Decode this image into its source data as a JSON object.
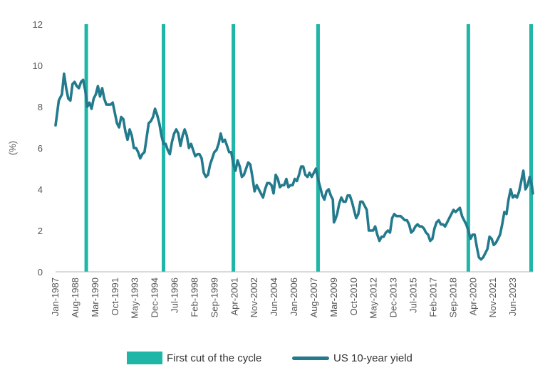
{
  "chart_data": {
    "type": "line",
    "title": "",
    "ylabel": "(%)",
    "xlabel": "",
    "ylim": [
      0,
      12
    ],
    "yticks": [
      0,
      2,
      4,
      6,
      8,
      10,
      12
    ],
    "x_tick_labels": [
      "Jan-1987",
      "Aug-1988",
      "Mar-1990",
      "Oct-1991",
      "May-1993",
      "Dec-1994",
      "Jul-1996",
      "Feb-1998",
      "Sep-1999",
      "Apr-2001",
      "Nov-2002",
      "Jun-2004",
      "Jan-2006",
      "Aug-2007",
      "Mar-2009",
      "Oct-2010",
      "May-2012",
      "Dec-2013",
      "Jul-2015",
      "Feb-2017",
      "Sep-2018",
      "Apr-2020",
      "Nov-2021",
      "Jun-2023"
    ],
    "x_range": [
      "1987-01",
      "2024-08"
    ],
    "grid": false,
    "legend_position": "bottom",
    "series": [
      {
        "name": "US 10-year yield",
        "color": "#237a8c",
        "points": [
          [
            "1987-01",
            7.1
          ],
          [
            "1987-04",
            8.3
          ],
          [
            "1987-07",
            8.6
          ],
          [
            "1987-09",
            9.6
          ],
          [
            "1987-11",
            8.9
          ],
          [
            "1988-01",
            8.4
          ],
          [
            "1988-03",
            8.3
          ],
          [
            "1988-05",
            9.1
          ],
          [
            "1988-07",
            9.2
          ],
          [
            "1988-09",
            9.0
          ],
          [
            "1988-11",
            8.9
          ],
          [
            "1989-01",
            9.2
          ],
          [
            "1989-03",
            9.3
          ],
          [
            "1989-05",
            8.8
          ],
          [
            "1989-07",
            8.0
          ],
          [
            "1989-09",
            8.2
          ],
          [
            "1989-11",
            7.9
          ],
          [
            "1990-01",
            8.4
          ],
          [
            "1990-03",
            8.6
          ],
          [
            "1990-05",
            9.0
          ],
          [
            "1990-07",
            8.5
          ],
          [
            "1990-09",
            8.9
          ],
          [
            "1990-11",
            8.4
          ],
          [
            "1991-01",
            8.1
          ],
          [
            "1991-03",
            8.1
          ],
          [
            "1991-05",
            8.1
          ],
          [
            "1991-07",
            8.2
          ],
          [
            "1991-09",
            7.7
          ],
          [
            "1991-11",
            7.2
          ],
          [
            "1992-01",
            7.0
          ],
          [
            "1992-03",
            7.5
          ],
          [
            "1992-05",
            7.4
          ],
          [
            "1992-07",
            6.8
          ],
          [
            "1992-09",
            6.4
          ],
          [
            "1992-11",
            6.9
          ],
          [
            "1993-01",
            6.6
          ],
          [
            "1993-03",
            6.0
          ],
          [
            "1993-05",
            6.0
          ],
          [
            "1993-07",
            5.8
          ],
          [
            "1993-09",
            5.5
          ],
          [
            "1993-11",
            5.7
          ],
          [
            "1994-01",
            5.8
          ],
          [
            "1994-03",
            6.5
          ],
          [
            "1994-05",
            7.2
          ],
          [
            "1994-07",
            7.3
          ],
          [
            "1994-09",
            7.5
          ],
          [
            "1994-11",
            7.9
          ],
          [
            "1995-01",
            7.6
          ],
          [
            "1995-03",
            7.2
          ],
          [
            "1995-05",
            6.6
          ],
          [
            "1995-07",
            6.2
          ],
          [
            "1995-09",
            6.2
          ],
          [
            "1995-11",
            5.9
          ],
          [
            "1996-01",
            5.7
          ],
          [
            "1996-03",
            6.3
          ],
          [
            "1996-05",
            6.7
          ],
          [
            "1996-07",
            6.9
          ],
          [
            "1996-09",
            6.7
          ],
          [
            "1996-11",
            6.1
          ],
          [
            "1997-01",
            6.6
          ],
          [
            "1997-03",
            6.9
          ],
          [
            "1997-05",
            6.6
          ],
          [
            "1997-07",
            6.0
          ],
          [
            "1997-09",
            6.2
          ],
          [
            "1997-11",
            5.9
          ],
          [
            "1998-01",
            5.6
          ],
          [
            "1998-03",
            5.7
          ],
          [
            "1998-05",
            5.7
          ],
          [
            "1998-07",
            5.5
          ],
          [
            "1998-09",
            4.8
          ],
          [
            "1998-11",
            4.6
          ],
          [
            "1999-01",
            4.7
          ],
          [
            "1999-03",
            5.2
          ],
          [
            "1999-05",
            5.5
          ],
          [
            "1999-07",
            5.8
          ],
          [
            "1999-09",
            5.9
          ],
          [
            "1999-11",
            6.2
          ],
          [
            "2000-01",
            6.7
          ],
          [
            "2000-03",
            6.3
          ],
          [
            "2000-05",
            6.4
          ],
          [
            "2000-07",
            6.1
          ],
          [
            "2000-09",
            5.8
          ],
          [
            "2000-11",
            5.8
          ],
          [
            "2001-01",
            5.2
          ],
          [
            "2001-03",
            4.9
          ],
          [
            "2001-05",
            5.4
          ],
          [
            "2001-07",
            5.1
          ],
          [
            "2001-09",
            4.6
          ],
          [
            "2001-11",
            4.7
          ],
          [
            "2002-01",
            5.0
          ],
          [
            "2002-03",
            5.3
          ],
          [
            "2002-05",
            5.2
          ],
          [
            "2002-07",
            4.6
          ],
          [
            "2002-09",
            3.9
          ],
          [
            "2002-11",
            4.2
          ],
          [
            "2003-01",
            4.0
          ],
          [
            "2003-03",
            3.8
          ],
          [
            "2003-05",
            3.6
          ],
          [
            "2003-07",
            4.0
          ],
          [
            "2003-09",
            4.3
          ],
          [
            "2003-11",
            4.3
          ],
          [
            "2004-01",
            4.2
          ],
          [
            "2004-03",
            3.8
          ],
          [
            "2004-05",
            4.7
          ],
          [
            "2004-07",
            4.5
          ],
          [
            "2004-09",
            4.1
          ],
          [
            "2004-11",
            4.2
          ],
          [
            "2005-01",
            4.2
          ],
          [
            "2005-03",
            4.5
          ],
          [
            "2005-05",
            4.1
          ],
          [
            "2005-07",
            4.2
          ],
          [
            "2005-09",
            4.2
          ],
          [
            "2005-11",
            4.5
          ],
          [
            "2006-01",
            4.4
          ],
          [
            "2006-03",
            4.7
          ],
          [
            "2006-05",
            5.1
          ],
          [
            "2006-07",
            5.1
          ],
          [
            "2006-09",
            4.7
          ],
          [
            "2006-11",
            4.6
          ],
          [
            "2007-01",
            4.8
          ],
          [
            "2007-03",
            4.6
          ],
          [
            "2007-05",
            4.8
          ],
          [
            "2007-07",
            5.0
          ],
          [
            "2007-09",
            4.5
          ],
          [
            "2007-11",
            4.1
          ],
          [
            "2008-01",
            3.7
          ],
          [
            "2008-03",
            3.5
          ],
          [
            "2008-05",
            3.9
          ],
          [
            "2008-07",
            4.0
          ],
          [
            "2008-09",
            3.7
          ],
          [
            "2008-11",
            3.5
          ],
          [
            "2008-12",
            2.4
          ],
          [
            "2009-01",
            2.5
          ],
          [
            "2009-03",
            2.8
          ],
          [
            "2009-05",
            3.3
          ],
          [
            "2009-07",
            3.6
          ],
          [
            "2009-09",
            3.4
          ],
          [
            "2009-11",
            3.4
          ],
          [
            "2010-01",
            3.7
          ],
          [
            "2010-03",
            3.7
          ],
          [
            "2010-05",
            3.4
          ],
          [
            "2010-07",
            3.0
          ],
          [
            "2010-09",
            2.6
          ],
          [
            "2010-11",
            2.8
          ],
          [
            "2011-01",
            3.4
          ],
          [
            "2011-03",
            3.4
          ],
          [
            "2011-05",
            3.2
          ],
          [
            "2011-07",
            3.0
          ],
          [
            "2011-09",
            2.0
          ],
          [
            "2011-11",
            2.0
          ],
          [
            "2012-01",
            2.0
          ],
          [
            "2012-03",
            2.2
          ],
          [
            "2012-05",
            1.8
          ],
          [
            "2012-07",
            1.5
          ],
          [
            "2012-09",
            1.7
          ],
          [
            "2012-11",
            1.7
          ],
          [
            "2013-01",
            1.9
          ],
          [
            "2013-03",
            2.0
          ],
          [
            "2013-05",
            1.9
          ],
          [
            "2013-07",
            2.6
          ],
          [
            "2013-09",
            2.8
          ],
          [
            "2013-11",
            2.7
          ],
          [
            "2014-01",
            2.7
          ],
          [
            "2014-03",
            2.7
          ],
          [
            "2014-05",
            2.6
          ],
          [
            "2014-07",
            2.5
          ],
          [
            "2014-09",
            2.5
          ],
          [
            "2014-11",
            2.3
          ],
          [
            "2015-01",
            1.9
          ],
          [
            "2015-03",
            2.0
          ],
          [
            "2015-05",
            2.2
          ],
          [
            "2015-07",
            2.3
          ],
          [
            "2015-09",
            2.2
          ],
          [
            "2015-11",
            2.2
          ],
          [
            "2016-01",
            2.1
          ],
          [
            "2016-03",
            1.9
          ],
          [
            "2016-05",
            1.8
          ],
          [
            "2016-07",
            1.5
          ],
          [
            "2016-09",
            1.6
          ],
          [
            "2016-11",
            2.1
          ],
          [
            "2017-01",
            2.4
          ],
          [
            "2017-03",
            2.5
          ],
          [
            "2017-05",
            2.3
          ],
          [
            "2017-07",
            2.3
          ],
          [
            "2017-09",
            2.2
          ],
          [
            "2017-11",
            2.4
          ],
          [
            "2018-01",
            2.6
          ],
          [
            "2018-03",
            2.8
          ],
          [
            "2018-05",
            3.0
          ],
          [
            "2018-07",
            2.9
          ],
          [
            "2018-09",
            3.0
          ],
          [
            "2018-11",
            3.1
          ],
          [
            "2019-01",
            2.7
          ],
          [
            "2019-03",
            2.5
          ],
          [
            "2019-05",
            2.3
          ],
          [
            "2019-07",
            2.0
          ],
          [
            "2019-09",
            1.6
          ],
          [
            "2019-11",
            1.8
          ],
          [
            "2020-01",
            1.8
          ],
          [
            "2020-03",
            1.2
          ],
          [
            "2020-05",
            0.7
          ],
          [
            "2020-07",
            0.6
          ],
          [
            "2020-09",
            0.7
          ],
          [
            "2020-11",
            0.9
          ],
          [
            "2021-01",
            1.1
          ],
          [
            "2021-03",
            1.7
          ],
          [
            "2021-05",
            1.6
          ],
          [
            "2021-07",
            1.3
          ],
          [
            "2021-09",
            1.4
          ],
          [
            "2021-11",
            1.6
          ],
          [
            "2022-01",
            1.8
          ],
          [
            "2022-03",
            2.3
          ],
          [
            "2022-05",
            2.9
          ],
          [
            "2022-07",
            2.8
          ],
          [
            "2022-09",
            3.5
          ],
          [
            "2022-11",
            4.0
          ],
          [
            "2023-01",
            3.6
          ],
          [
            "2023-03",
            3.7
          ],
          [
            "2023-05",
            3.6
          ],
          [
            "2023-07",
            3.9
          ],
          [
            "2023-09",
            4.4
          ],
          [
            "2023-11",
            4.9
          ],
          [
            "2024-01",
            4.0
          ],
          [
            "2024-03",
            4.2
          ],
          [
            "2024-05",
            4.6
          ],
          [
            "2024-07",
            4.2
          ],
          [
            "2024-08",
            3.8
          ]
        ]
      }
    ],
    "first_cuts": {
      "name": "First cut of the cycle",
      "color": "#1fb5a7",
      "dates": [
        "1989-06",
        "1995-07",
        "2001-01",
        "2007-09",
        "2019-07",
        "2024-09"
      ]
    }
  },
  "legend": {
    "bar_label": "First cut of the cycle",
    "line_label": "US 10-year yield"
  }
}
